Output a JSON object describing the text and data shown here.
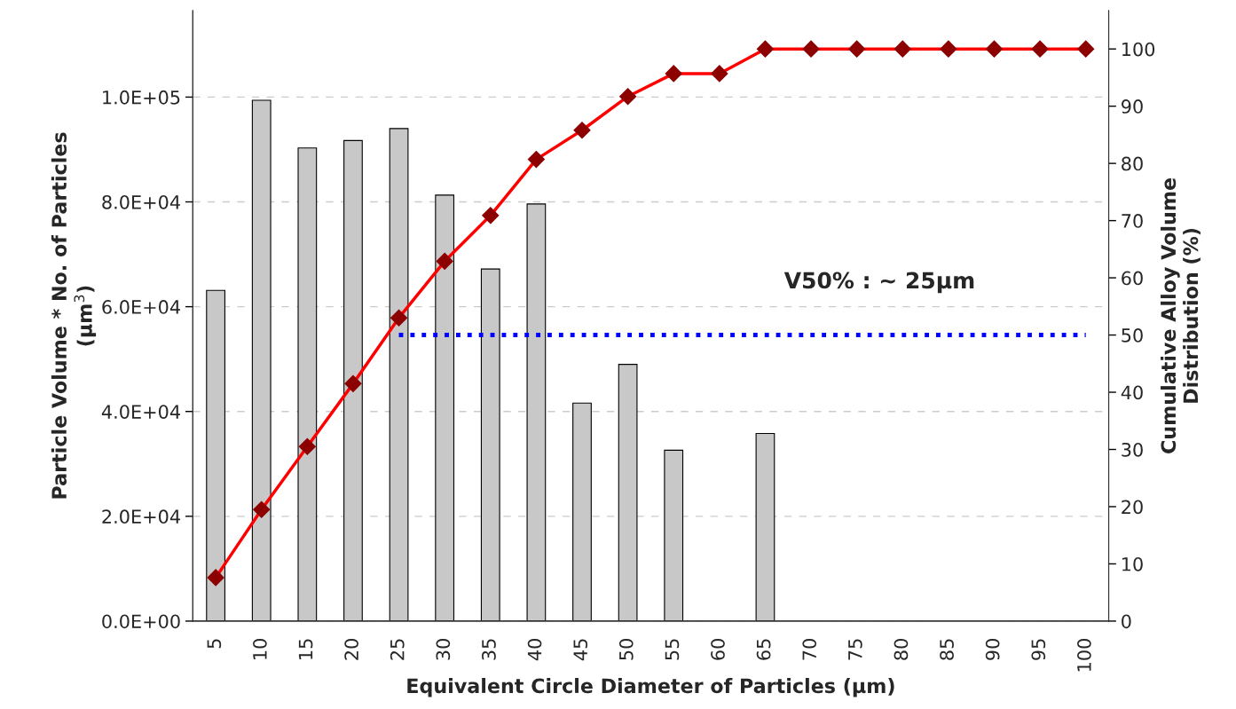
{
  "chart_data": {
    "type": "bar",
    "xlabel": "Equivalent Circle Diameter of Particles (µm)",
    "ylabel": "Particle Volume * No. of Particles\n(µm$^{3}$)",
    "y2label": "Cumulative Alloy Volume\nDistribution (%)",
    "categories": [
      "5",
      "10",
      "15",
      "20",
      "25",
      "30",
      "35",
      "40",
      "45",
      "50",
      "55",
      "60",
      "65",
      "70",
      "75",
      "80",
      "85",
      "90",
      "95",
      "100"
    ],
    "series": [
      {
        "color": "#c8c8c8",
        "values": [
          63100,
          99400,
          90300,
          91700,
          94000,
          81300,
          67200,
          79600,
          41600,
          49000,
          32600,
          null,
          35800,
          null,
          null,
          null,
          null,
          null,
          null,
          null
        ]
      },
      {
        "type": "line",
        "axis": "y2",
        "color": "#ff0000",
        "marker": "diamond",
        "values": [
          7.6,
          19.5,
          30.5,
          41.5,
          53.0,
          62.9,
          70.9,
          80.7,
          85.8,
          91.7,
          95.7,
          95.7,
          100,
          100,
          100,
          100,
          100,
          100,
          100,
          100
        ]
      },
      {
        "type": "line",
        "axis": "y2",
        "color": "#0000ff",
        "line_style": "dotted",
        "x": [
          "25",
          "30",
          "35",
          "40",
          "45",
          "50",
          "55",
          "60",
          "65",
          "70",
          "75",
          "80",
          "85",
          "90",
          "95",
          "100"
        ],
        "values": [
          50,
          50,
          50,
          50,
          50,
          50,
          50,
          50,
          50,
          50,
          50,
          50,
          50,
          50,
          50,
          50
        ]
      }
    ],
    "ylim": [
      0,
      116500
    ],
    "yticks": [
      {
        "value": 0,
        "label": "0.0E+00"
      },
      {
        "value": 20000,
        "label": "2.0E+04"
      },
      {
        "value": 40000,
        "label": "4.0E+04"
      },
      {
        "value": 60000,
        "label": "6.0E+04"
      },
      {
        "value": 80000,
        "label": "8.0E+04"
      },
      {
        "value": 100000,
        "label": "1.0E+05"
      }
    ],
    "y2lim": [
      0,
      106.7
    ],
    "y2ticks": [
      0,
      10,
      20,
      30,
      40,
      50,
      60,
      70,
      80,
      90,
      100
    ],
    "grid": "y",
    "legend": false,
    "annotations": [
      "V50% : ~ 25µm"
    ]
  }
}
